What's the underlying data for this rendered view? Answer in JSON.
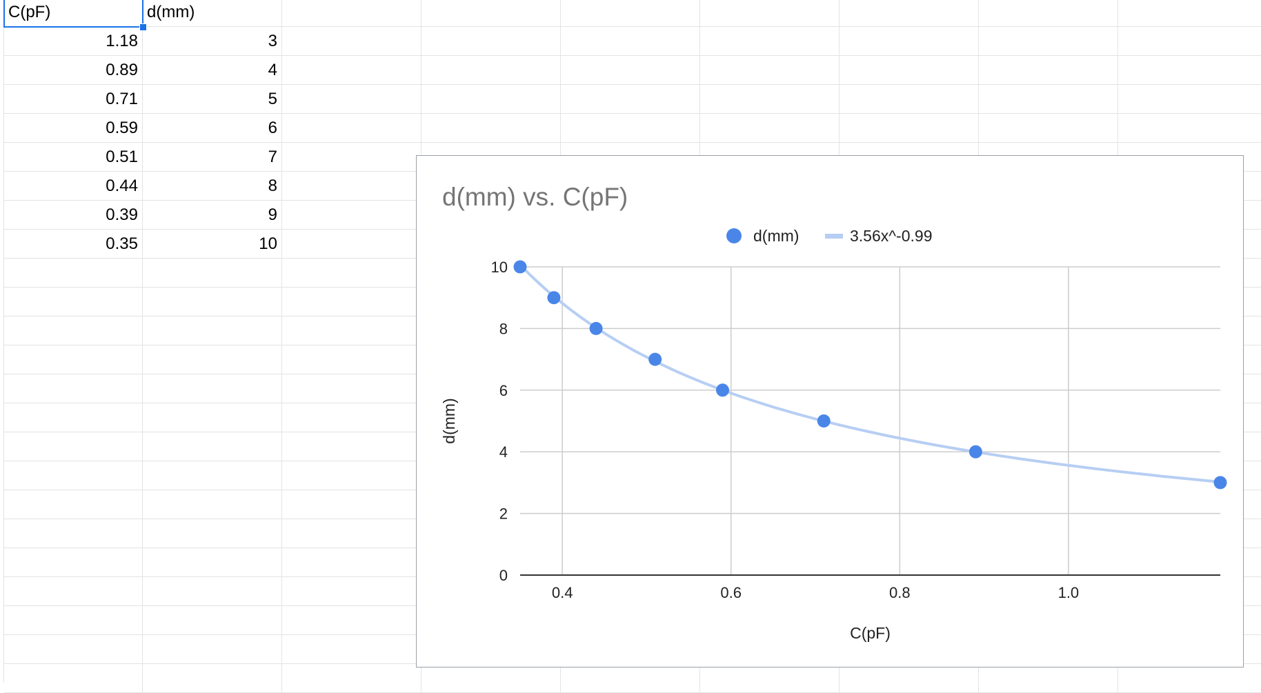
{
  "sheet": {
    "headers": [
      "C(pF)",
      "d(mm)"
    ],
    "rows": [
      [
        "1.18",
        "3"
      ],
      [
        "0.89",
        "4"
      ],
      [
        "0.71",
        "5"
      ],
      [
        "0.59",
        "6"
      ],
      [
        "0.51",
        "7"
      ],
      [
        "0.44",
        "8"
      ],
      [
        "0.39",
        "9"
      ],
      [
        "0.35",
        "10"
      ]
    ],
    "selected_cell": "C(pF)"
  },
  "chart_data": {
    "type": "scatter",
    "title": "d(mm) vs. C(pF)",
    "xlabel": "C(pF)",
    "ylabel": "d(mm)",
    "xlim": [
      0.35,
      1.18
    ],
    "ylim": [
      0,
      10
    ],
    "x_ticks": [
      "0.4",
      "0.6",
      "0.8",
      "1.0"
    ],
    "y_ticks": [
      "0",
      "2",
      "4",
      "6",
      "8",
      "10"
    ],
    "grid": true,
    "legend_position": "top",
    "series": [
      {
        "name": "d(mm)",
        "type": "scatter",
        "color": "#4a86e8",
        "x": [
          1.18,
          0.89,
          0.71,
          0.59,
          0.51,
          0.44,
          0.39,
          0.35
        ],
        "y": [
          3,
          4,
          5,
          6,
          7,
          8,
          9,
          10
        ]
      },
      {
        "name": "3.56x^-0.99",
        "type": "trendline",
        "color": "#b7cef3",
        "equation": "y = 3.56 * x^-0.99"
      }
    ]
  }
}
